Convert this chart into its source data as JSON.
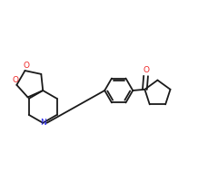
{
  "bg_color": "#ffffff",
  "bond_color": "#1a1a1a",
  "N_color": "#2222ee",
  "O_color": "#ee2222",
  "lw": 1.3,
  "figsize": [
    2.4,
    2.0
  ],
  "dpi": 100,
  "xlim": [
    0.0,
    1.0
  ],
  "ylim": [
    0.18,
    0.82
  ]
}
